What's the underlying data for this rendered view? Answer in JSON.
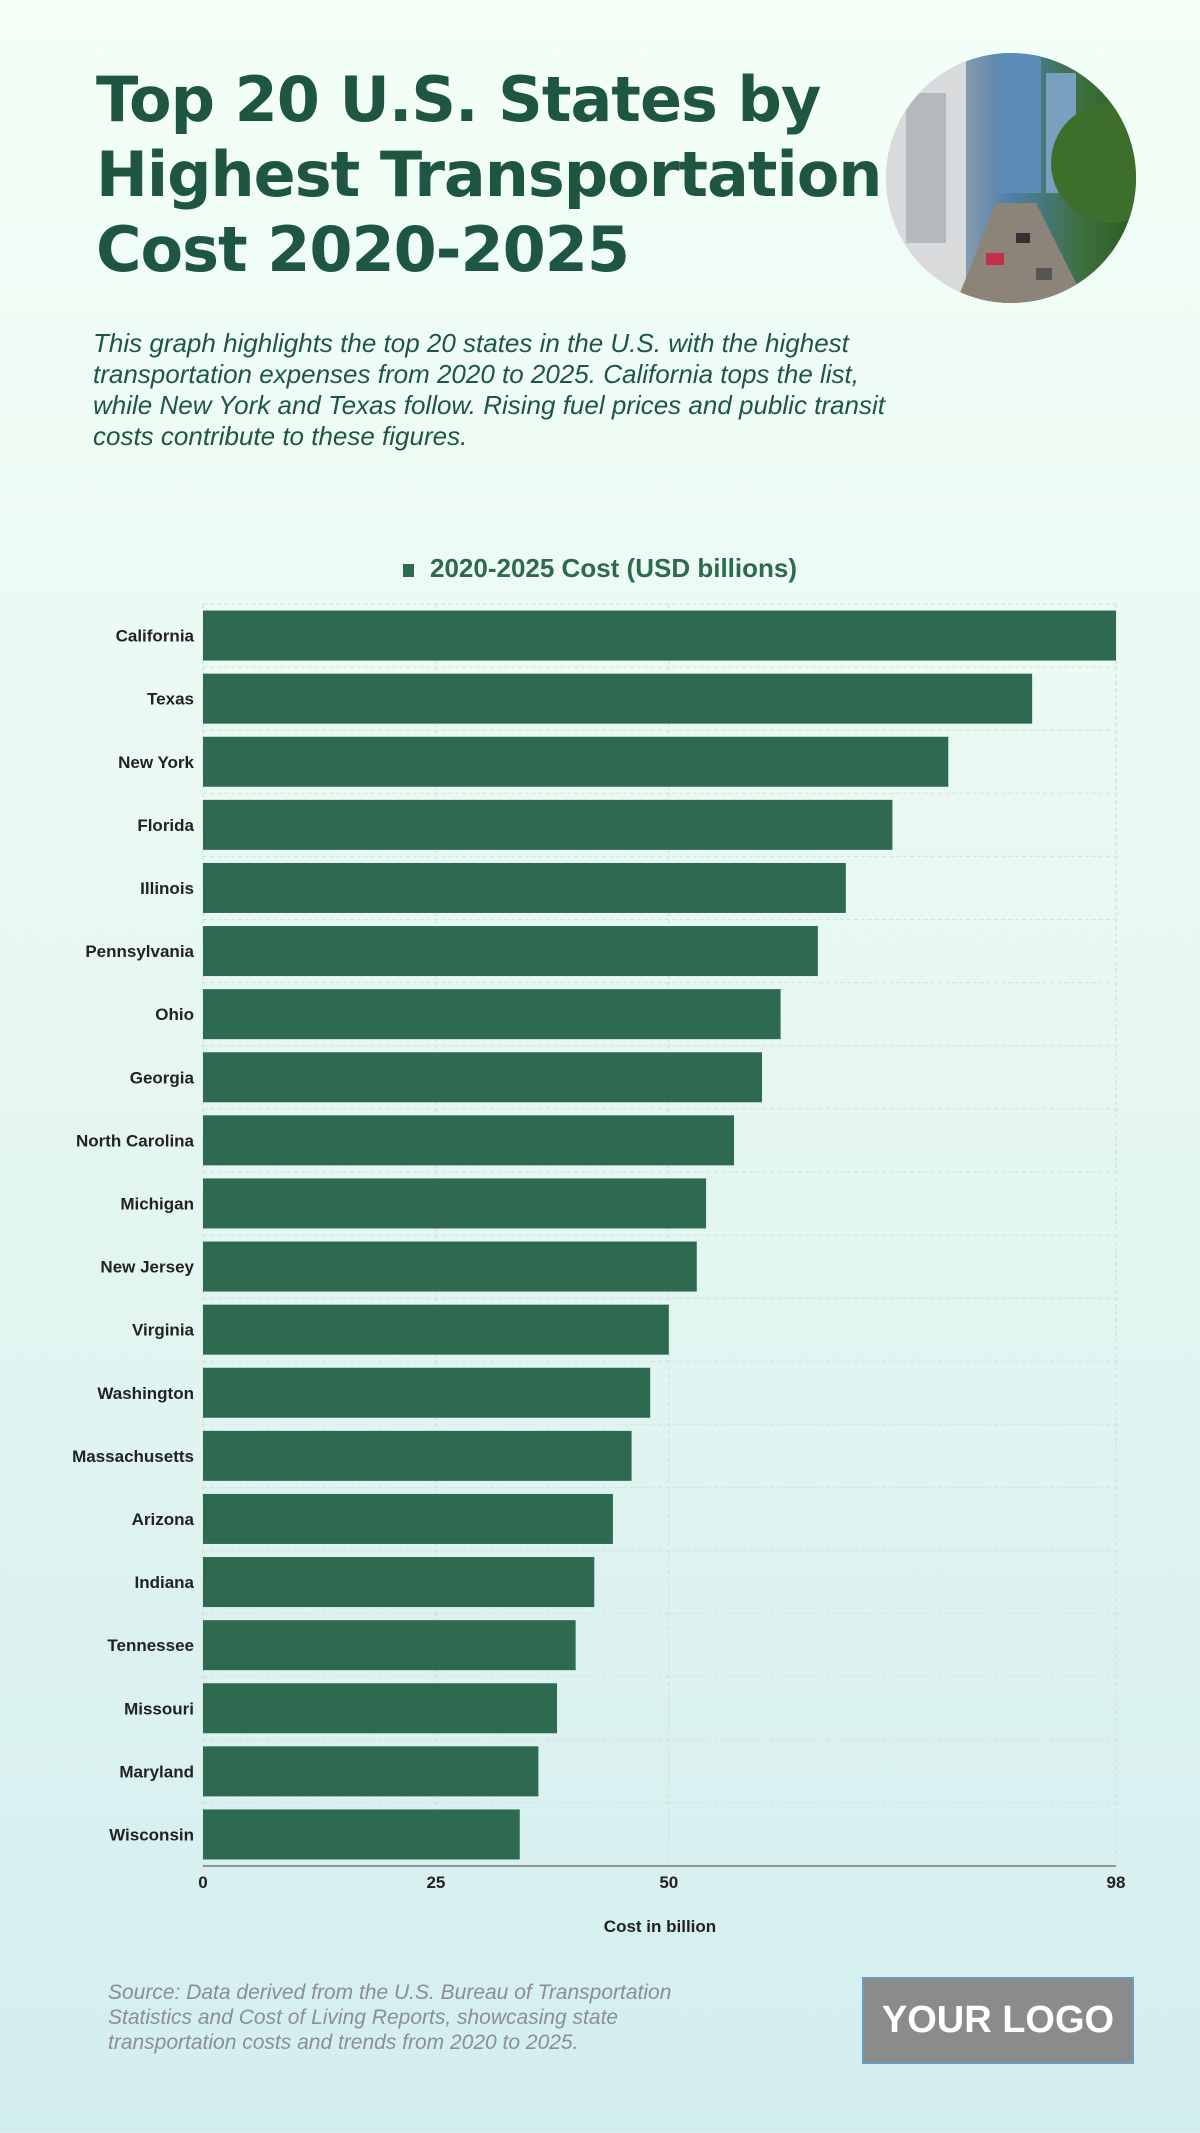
{
  "title": "Top 20 U.S. States by Highest Transportation Cost 2020-2025",
  "subtitle": "This graph highlights the top 20 states in the U.S. with the highest transportation expenses from 2020 to 2025. California tops the list, while New York and Texas follow. Rising fuel prices and public transit costs contribute to these figures.",
  "source": "Source: Data derived from the U.S. Bureau of Transportation Statistics and Cost of Living Reports, showcasing state transportation costs and trends from 2020 to 2025.",
  "logo": "YOUR LOGO",
  "colors": {
    "bar": "#2d6a50",
    "title": "#1e5641"
  },
  "chart_data": {
    "type": "bar",
    "orientation": "horizontal",
    "legend": "2020-2025 Cost (USD billions)",
    "legend_position": "top",
    "xlabel": "Cost in billion",
    "ylabel": "",
    "xlim": [
      0,
      98
    ],
    "xticks": [
      0,
      25,
      50,
      98
    ],
    "grid": true,
    "categories": [
      "California",
      "Texas",
      "New York",
      "Florida",
      "Illinois",
      "Pennsylvania",
      "Ohio",
      "Georgia",
      "North Carolina",
      "Michigan",
      "New Jersey",
      "Virginia",
      "Washington",
      "Massachusetts",
      "Arizona",
      "Indiana",
      "Tennessee",
      "Missouri",
      "Maryland",
      "Wisconsin"
    ],
    "values": [
      98,
      89,
      80,
      74,
      69,
      66,
      62,
      60,
      57,
      54,
      53,
      50,
      48,
      46,
      44,
      42,
      40,
      38,
      36,
      34
    ]
  }
}
